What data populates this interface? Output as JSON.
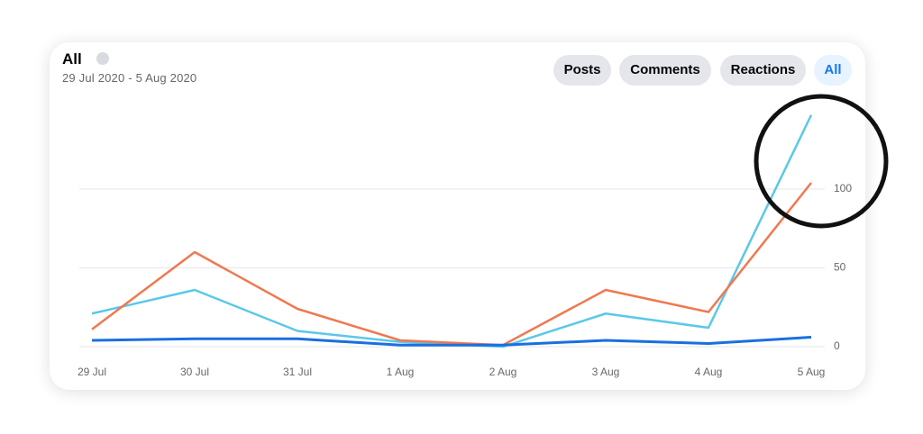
{
  "chart_data": {
    "type": "line",
    "title": "All",
    "subtitle": "29 Jul 2020 - 5 Aug 2020",
    "categories": [
      "29 Jul",
      "30 Jul",
      "31 Jul",
      "1 Aug",
      "2 Aug",
      "3 Aug",
      "4 Aug",
      "5 Aug"
    ],
    "series": [
      {
        "color": "#5bc8e8",
        "values": [
          21,
          36,
          10,
          3,
          0,
          21,
          12,
          147
        ]
      },
      {
        "color": "#f07850",
        "values": [
          11,
          60,
          24,
          4,
          1,
          36,
          22,
          104
        ]
      },
      {
        "color": "#1a6fe0",
        "values": [
          4,
          5,
          5,
          1,
          1,
          4,
          2,
          6
        ]
      }
    ],
    "ylim": [
      0,
      150
    ],
    "yticks": [
      0,
      50,
      100
    ],
    "grid": true
  },
  "buttons": [
    "Posts",
    "Comments",
    "Reactions",
    "All"
  ]
}
